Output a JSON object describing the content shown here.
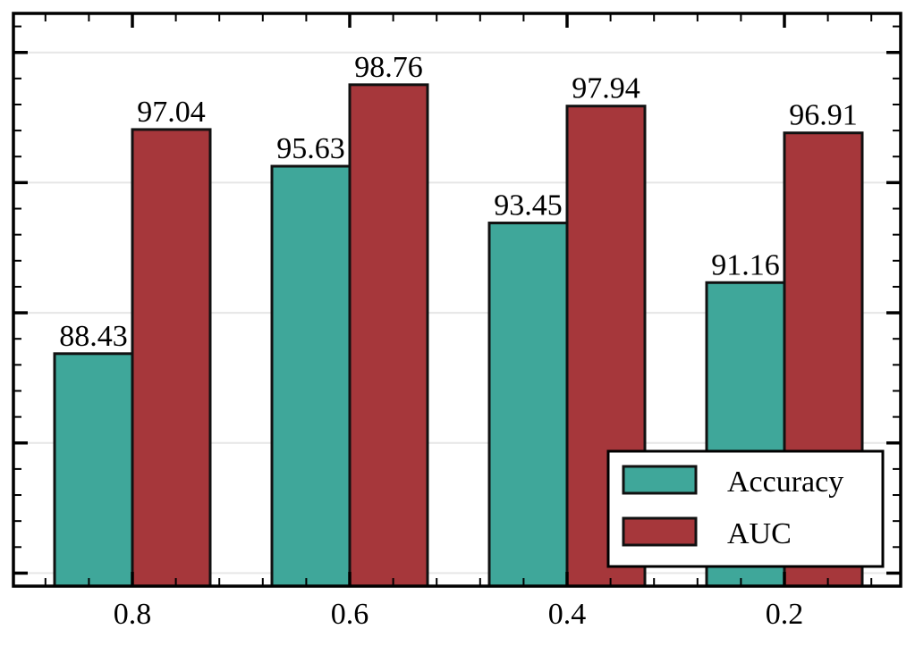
{
  "chart_data": {
    "type": "bar",
    "categories": [
      "0.8",
      "0.6",
      "0.4",
      "0.2"
    ],
    "series": [
      {
        "name": "Accuracy",
        "values": [
          88.43,
          95.63,
          93.45,
          91.16
        ],
        "color": "#3fa79a"
      },
      {
        "name": "AUC",
        "values": [
          97.04,
          98.76,
          97.94,
          96.91
        ],
        "color": "#a6373b"
      }
    ],
    "ylim": [
      79.5,
      101.5
    ],
    "y_tick_labels_shown": false,
    "grid": "horizontal",
    "legend": "lower-right"
  }
}
